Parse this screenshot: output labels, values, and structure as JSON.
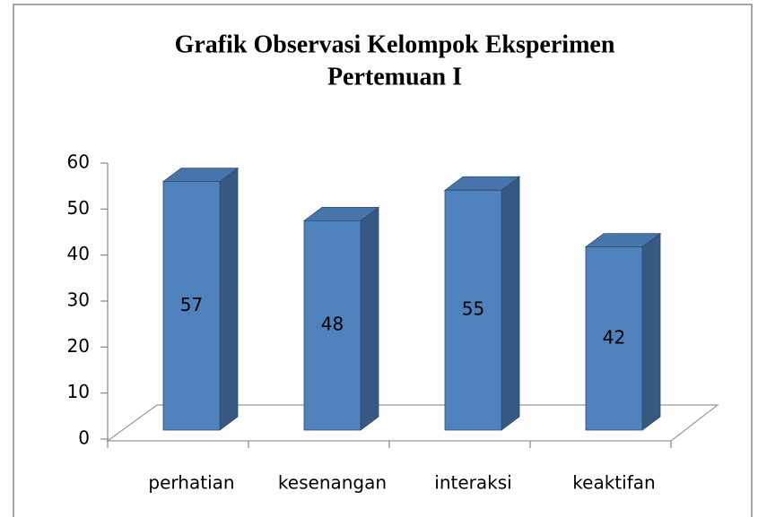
{
  "chart_data": {
    "type": "bar3d",
    "title": [
      "Grafik Observasi Kelompok Eksperimen",
      "Pertemuan I"
    ],
    "categories": [
      "perhatian",
      "kesenangan",
      "interaksi",
      "keaktifan"
    ],
    "values": [
      57,
      48,
      55,
      42
    ],
    "color": "#4f81bd",
    "ylim": [
      0,
      60
    ],
    "yticks": [
      0,
      10,
      20,
      30,
      40,
      50,
      60
    ],
    "grid": false
  }
}
